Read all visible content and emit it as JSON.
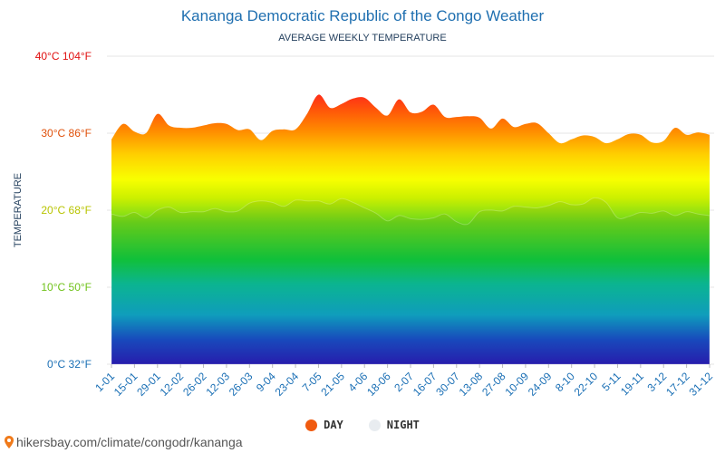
{
  "title": "Kananga Democratic Republic of the Congo Weather",
  "subtitle": "AVERAGE WEEKLY TEMPERATURE",
  "legend": {
    "day_label": "DAY",
    "night_label": "NIGHT"
  },
  "source": "hikersbay.com/climate/congodr/kananga",
  "colors": {
    "day_dot": "#f05a0f",
    "night_dot": "#e8ecf0",
    "title": "#1f6fb0"
  },
  "icons": {
    "source_icon": "map-pin-icon"
  },
  "chart_data": {
    "type": "area",
    "ylabel": "TEMPERATURE",
    "ylim": [
      0,
      40
    ],
    "grid": true,
    "legend_position": "bottom",
    "y_ticks": [
      {
        "value": 0,
        "label": "0°C 32°F",
        "color": "#1a6fb5"
      },
      {
        "value": 10,
        "label": "10°C 50°F",
        "color": "#6fc21a"
      },
      {
        "value": 20,
        "label": "20°C 68°F",
        "color": "#b8c400"
      },
      {
        "value": 30,
        "label": "30°C 86°F",
        "color": "#e0500a"
      },
      {
        "value": 40,
        "label": "40°C 104°F",
        "color": "#e01010"
      }
    ],
    "x_tick_labels": [
      "1-01",
      "15-01",
      "29-01",
      "12-02",
      "26-02",
      "12-03",
      "26-03",
      "9-04",
      "23-04",
      "7-05",
      "21-05",
      "4-06",
      "18-06",
      "2-07",
      "16-07",
      "30-07",
      "13-08",
      "27-08",
      "10-09",
      "24-09",
      "8-10",
      "22-10",
      "5-11",
      "19-11",
      "3-12",
      "17-12",
      "31-12"
    ],
    "series": [
      {
        "name": "DAY",
        "values": [
          29.2,
          31.2,
          30.2,
          30.0,
          32.5,
          31.0,
          30.7,
          30.7,
          31.0,
          31.3,
          31.2,
          30.4,
          30.5,
          29.1,
          30.3,
          30.5,
          30.5,
          32.5,
          35.0,
          33.3,
          33.8,
          34.5,
          34.6,
          33.3,
          32.3,
          34.4,
          32.7,
          32.8,
          33.7,
          32.1,
          32.1,
          32.2,
          32.0,
          30.6,
          31.9,
          30.8,
          31.2,
          31.3,
          30.0,
          28.7,
          29.2,
          29.7,
          29.5,
          28.7,
          29.2,
          29.9,
          29.8,
          28.8,
          29.0,
          30.7,
          29.8,
          30.1,
          29.8
        ]
      },
      {
        "name": "NIGHT",
        "values": [
          19.5,
          19.2,
          19.7,
          19.0,
          20.0,
          20.4,
          19.7,
          19.8,
          19.8,
          20.2,
          19.8,
          19.9,
          20.9,
          21.2,
          21.0,
          20.5,
          21.3,
          21.2,
          21.2,
          20.8,
          21.5,
          21.0,
          20.3,
          19.6,
          18.6,
          19.3,
          18.9,
          18.8,
          19.0,
          19.5,
          18.5,
          18.2,
          19.8,
          20.0,
          19.9,
          20.5,
          20.4,
          20.3,
          20.6,
          21.1,
          20.7,
          20.8,
          21.6,
          21.0,
          19.0,
          19.2,
          19.7,
          19.6,
          19.9,
          19.3,
          19.8,
          19.5,
          19.3
        ]
      }
    ]
  }
}
